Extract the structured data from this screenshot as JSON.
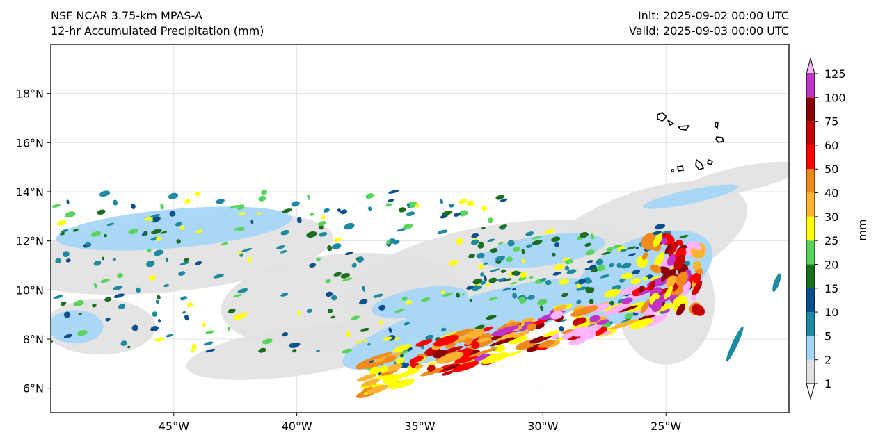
{
  "header": {
    "model": "NSF NCAR 3.75-km MPAS-A",
    "field": "12-hr Accumulated Precipitation (mm)",
    "init": "Init: 2025-09-02 00:00 UTC",
    "valid": "Valid: 2025-09-03 00:00 UTC"
  },
  "map": {
    "lon_range": [
      -50,
      -20
    ],
    "lat_range": [
      5,
      20
    ],
    "x_ticks": [
      "45°W",
      "40°W",
      "35°W",
      "30°W",
      "25°W"
    ],
    "x_tick_values": [
      -45,
      -40,
      -35,
      -30,
      -25
    ],
    "y_ticks": [
      "18°N",
      "16°N",
      "14°N",
      "12°N",
      "10°N",
      "8°N",
      "6°N"
    ],
    "y_tick_values": [
      18,
      16,
      14,
      12,
      10,
      8,
      6
    ],
    "gridlines": true,
    "features": [
      "Cape Verde Islands outline",
      "rainband along ITCZ",
      "tropical disturbance near 10°N 24°W"
    ]
  },
  "colorbar": {
    "label": "mm",
    "levels": [
      "1",
      "2",
      "5",
      "10",
      "15",
      "20",
      "25",
      "30",
      "40",
      "50",
      "60",
      "75",
      "100",
      "125"
    ],
    "colors": [
      "#e1e1e1",
      "#a6d6f7",
      "#1e8aa0",
      "#0b4f8c",
      "#1b6e1f",
      "#58d35c",
      "#ffff00",
      "#ffb431",
      "#f08a1c",
      "#ff0000",
      "#c80000",
      "#8b0000",
      "#bf33c9",
      "#ffb3ff"
    ]
  },
  "colors": {
    "axis": "#000000",
    "grid": "#dddddd",
    "coast": "#000000"
  }
}
